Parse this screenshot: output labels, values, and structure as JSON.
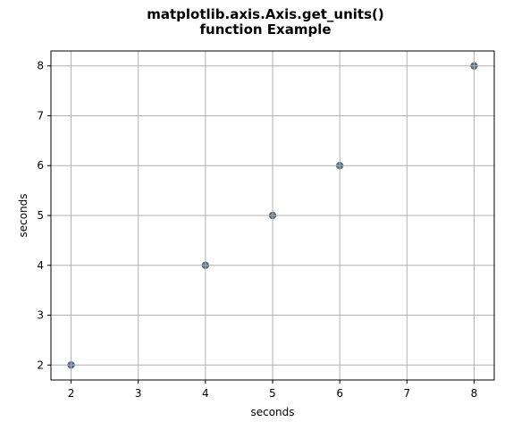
{
  "chart_data": {
    "type": "scatter",
    "title_lines": [
      "matplotlib.axis.Axis.get_units()",
      "function Example"
    ],
    "xlabel": "seconds",
    "ylabel": "seconds",
    "x": [
      2,
      4,
      5,
      6,
      8
    ],
    "y": [
      2,
      4,
      5,
      6,
      8
    ],
    "xlim": [
      1.7,
      8.3
    ],
    "ylim": [
      1.7,
      8.3
    ],
    "xticks": [
      2,
      3,
      4,
      5,
      6,
      7,
      8
    ],
    "yticks": [
      2,
      3,
      4,
      5,
      6,
      7,
      8
    ],
    "grid": true,
    "marker_color": "#5b6e80",
    "grid_color": "#b0b0b0"
  }
}
